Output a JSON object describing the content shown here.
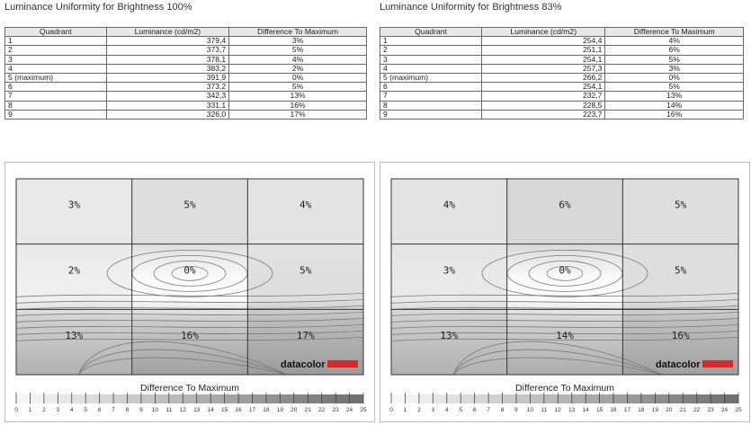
{
  "chart_data": [
    {
      "type": "table",
      "title": "Luminance Uniformity for Brightness 100%",
      "columns": [
        "Quadrant",
        "Luminance (cd/m2)",
        "Difference To Maximum"
      ],
      "rows": [
        [
          "1",
          "379,4",
          "3%"
        ],
        [
          "2",
          "373,7",
          "5%"
        ],
        [
          "3",
          "378,1",
          "4%"
        ],
        [
          "4",
          "383,2",
          "2%"
        ],
        [
          "5 (maximum)",
          "391,9",
          "0%"
        ],
        [
          "6",
          "373,2",
          "5%"
        ],
        [
          "7",
          "342,3",
          "13%"
        ],
        [
          "8",
          "331,1",
          "16%"
        ],
        [
          "9",
          "326,0",
          "17%"
        ]
      ]
    },
    {
      "type": "table",
      "title": "Luminance Uniformity for Brightness 83%",
      "columns": [
        "Quadrant",
        "Luminance (cd/m2)",
        "Difference To Maximum"
      ],
      "rows": [
        [
          "1",
          "254,4",
          "4%"
        ],
        [
          "2",
          "251,1",
          "6%"
        ],
        [
          "3",
          "254,1",
          "5%"
        ],
        [
          "4",
          "257,3",
          "3%"
        ],
        [
          "5 (maximum)",
          "266,2",
          "0%"
        ],
        [
          "6",
          "254,1",
          "5%"
        ],
        [
          "7",
          "232,7",
          "13%"
        ],
        [
          "8",
          "228,5",
          "14%"
        ],
        [
          "9",
          "223,7",
          "16%"
        ]
      ]
    },
    {
      "type": "heatmap",
      "grid": [
        [
          "3%",
          "5%",
          "4%"
        ],
        [
          "2%",
          "0%",
          "5%"
        ],
        [
          "13%",
          "16%",
          "17%"
        ]
      ],
      "values": [
        [
          3,
          5,
          4
        ],
        [
          2,
          0,
          5
        ],
        [
          13,
          16,
          17
        ]
      ],
      "scale_label": "Difference To Maximum",
      "scale_ticks": [
        "0",
        "1",
        "2",
        "3",
        "4",
        "5",
        "6",
        "7",
        "8",
        "9",
        "10",
        "11",
        "12",
        "13",
        "14",
        "15",
        "16",
        "17",
        "18",
        "19",
        "20",
        "21",
        "22",
        "23",
        "24",
        "25"
      ],
      "scale_range": [
        0,
        25
      ],
      "brand": "datacolor"
    },
    {
      "type": "heatmap",
      "grid": [
        [
          "4%",
          "6%",
          "5%"
        ],
        [
          "3%",
          "0%",
          "5%"
        ],
        [
          "13%",
          "14%",
          "16%"
        ]
      ],
      "values": [
        [
          4,
          6,
          5
        ],
        [
          3,
          0,
          5
        ],
        [
          13,
          14,
          16
        ]
      ],
      "scale_label": "Difference To Maximum",
      "scale_ticks": [
        "0",
        "1",
        "2",
        "3",
        "4",
        "5",
        "6",
        "7",
        "8",
        "9",
        "10",
        "11",
        "12",
        "13",
        "14",
        "15",
        "16",
        "17",
        "18",
        "19",
        "20",
        "21",
        "22",
        "23",
        "24",
        "25"
      ],
      "scale_range": [
        0,
        25
      ],
      "brand": "datacolor"
    }
  ]
}
